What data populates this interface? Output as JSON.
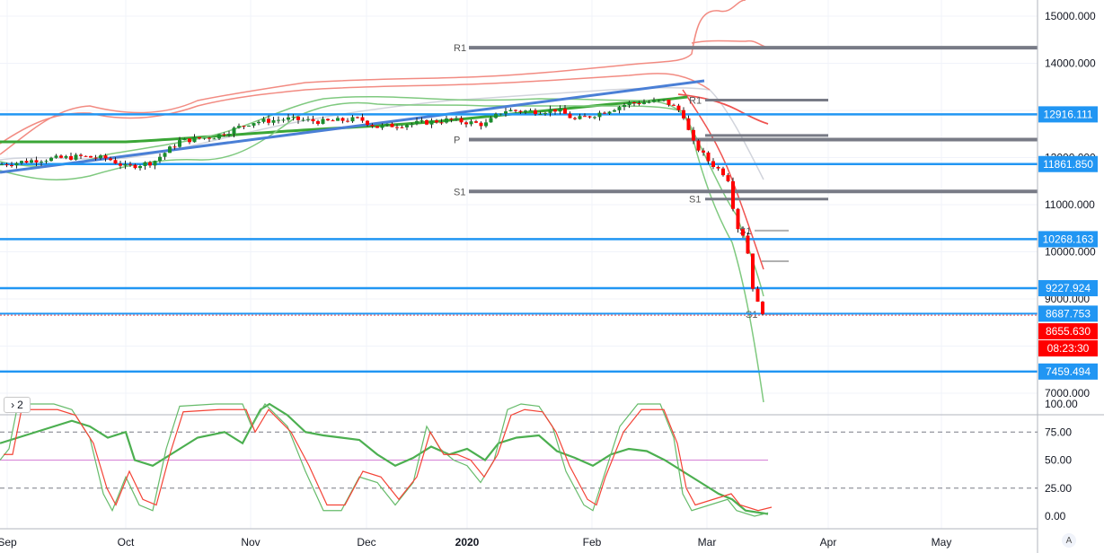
{
  "oscillator_button": {
    "chevron": "›",
    "label": "2"
  },
  "auto_scale_label": "A",
  "colors": {
    "hline": "#2196f3",
    "trend": "#4a7fd6",
    "pivot": "#787b86",
    "bb_outer": "#f28b82",
    "bb_inner": "#7fc97f",
    "ma_green": "#3aa636",
    "ma_red": "#ef5350",
    "ma_gray": "#d1d4dc",
    "up": "#26a69a",
    "down": "#ef5350",
    "stoch_green": "#4caf50",
    "stoch_red": "#f44336",
    "price_badge": "#2196f3",
    "last_badge": "#ff0000"
  },
  "chart_data": [
    {
      "type": "candlestick",
      "price_axis_ticks": [
        "15000.000",
        "14000.000",
        "12000.000",
        "11000.000",
        "10000.000",
        "9000.000",
        "7000.000"
      ],
      "ylim": [
        6500,
        15600
      ],
      "x_labels": [
        "Sep",
        "Oct",
        "Nov",
        "Dec",
        "2020",
        "Feb",
        "Mar",
        "Apr",
        "May"
      ],
      "horizontal_levels": [
        {
          "label": "12916.111",
          "value": 12916.111
        },
        {
          "label": "11861.850",
          "value": 11861.85
        },
        {
          "label": "10268.163",
          "value": 10268.163
        },
        {
          "label": "9227.924",
          "value": 9227.924
        },
        {
          "label": "8687.753",
          "value": 8687.753
        },
        {
          "label": "7459.494",
          "value": 7459.494
        }
      ],
      "last_price": {
        "label": "8655.630",
        "value": 8655.63
      },
      "countdown": "08:23:30",
      "pivot_levels": [
        {
          "label": "R1",
          "value": 14330
        },
        {
          "label": "P",
          "value": 12380
        },
        {
          "label": "S1",
          "value": 11280
        },
        {
          "label": "R1",
          "value": 13220
        },
        {
          "label": "S1",
          "value": 11120
        },
        {
          "label": "S1",
          "value": 10450
        },
        {
          "label": "S1",
          "value": 8680
        }
      ],
      "trendline": {
        "from": {
          "date": "2019-09",
          "value": 11450
        },
        "to": {
          "date": "2020-03",
          "value": 13560
        }
      }
    },
    {
      "type": "line",
      "name": "stochastic",
      "y_ticks": [
        "100.00",
        "75.00",
        "50.00",
        "25.00",
        "0.00"
      ],
      "ylim": [
        -5,
        105
      ],
      "levels": [
        75,
        50,
        25
      ]
    }
  ]
}
